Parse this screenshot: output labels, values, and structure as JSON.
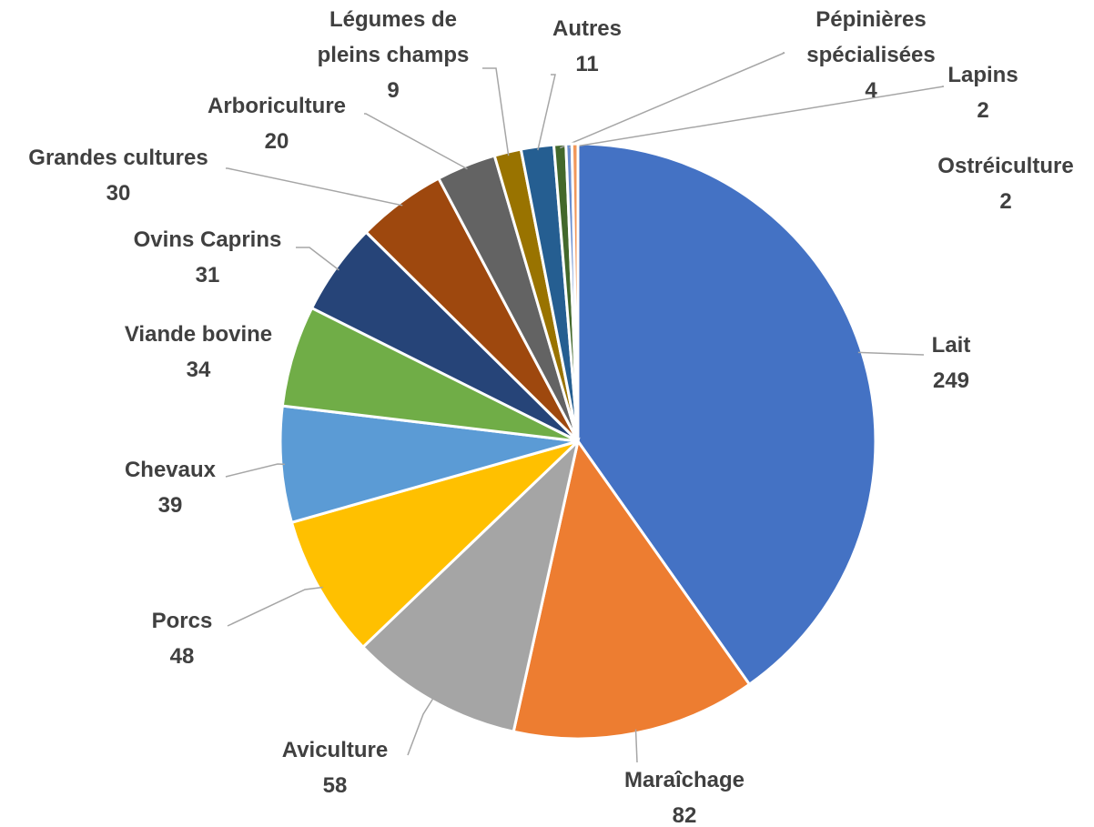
{
  "chart_data": {
    "type": "pie",
    "categories": [
      "Lait",
      "Maraîchage",
      "Aviculture",
      "Porcs",
      "Chevaux",
      "Viande bovine",
      "Ovins Caprins",
      "Grandes cultures",
      "Arboriculture",
      "Légumes de pleins champs",
      "Autres",
      "Pépinières spécialisées",
      "Lapins",
      "Ostréiculture"
    ],
    "values": [
      249,
      82,
      58,
      48,
      39,
      34,
      31,
      30,
      20,
      9,
      11,
      4,
      2,
      2
    ],
    "colors": [
      "#4472c4",
      "#ed7d31",
      "#a5a5a5",
      "#ffc000",
      "#5b9bd5",
      "#70ad47",
      "#264478",
      "#9e480e",
      "#636363",
      "#997300",
      "#255e91",
      "#43682b",
      "#698ed0",
      "#f1975a"
    ]
  }
}
